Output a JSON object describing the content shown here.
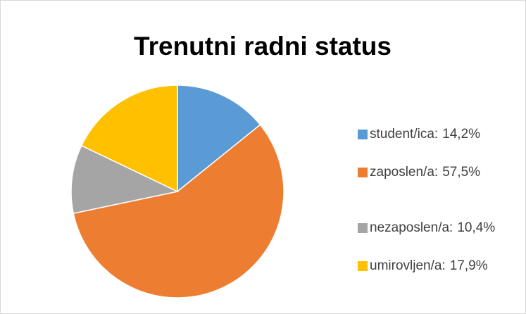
{
  "chart_data": {
    "type": "pie",
    "title": "Trenutni radni status",
    "categories": [
      "student/ica:",
      "zaposlen/a:",
      "nezaposlen/a:",
      "umirovljen/a:"
    ],
    "values": [
      14.2,
      57.5,
      10.4,
      17.9
    ],
    "value_labels": [
      "14,2%",
      "57,5%",
      "10,4%",
      "17,9%"
    ],
    "colors": [
      "#5b9bd5",
      "#ed7d31",
      "#a5a5a5",
      "#ffc000"
    ],
    "legend": "right"
  }
}
